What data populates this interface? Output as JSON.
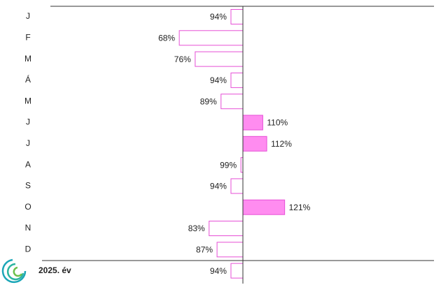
{
  "chart_data": {
    "type": "bar",
    "orientation": "horizontal",
    "categories": [
      "J",
      "F",
      "M",
      "Á",
      "M",
      "J",
      "J",
      "A",
      "S",
      "O",
      "N",
      "D",
      "2025. év"
    ],
    "values": [
      94,
      68,
      76,
      94,
      89,
      110,
      112,
      99,
      94,
      121,
      83,
      87,
      94
    ],
    "value_labels": [
      "94%",
      "68%",
      "76%",
      "94%",
      "89%",
      "110%",
      "112%",
      "99%",
      "94%",
      "121%",
      "83%",
      "87%",
      "94%"
    ],
    "xlim": [
      0,
      200
    ],
    "baseline": 100,
    "colors": {
      "above": "#ff8cf0",
      "below": "#ffffff",
      "stroke": "#e64fd6"
    }
  }
}
